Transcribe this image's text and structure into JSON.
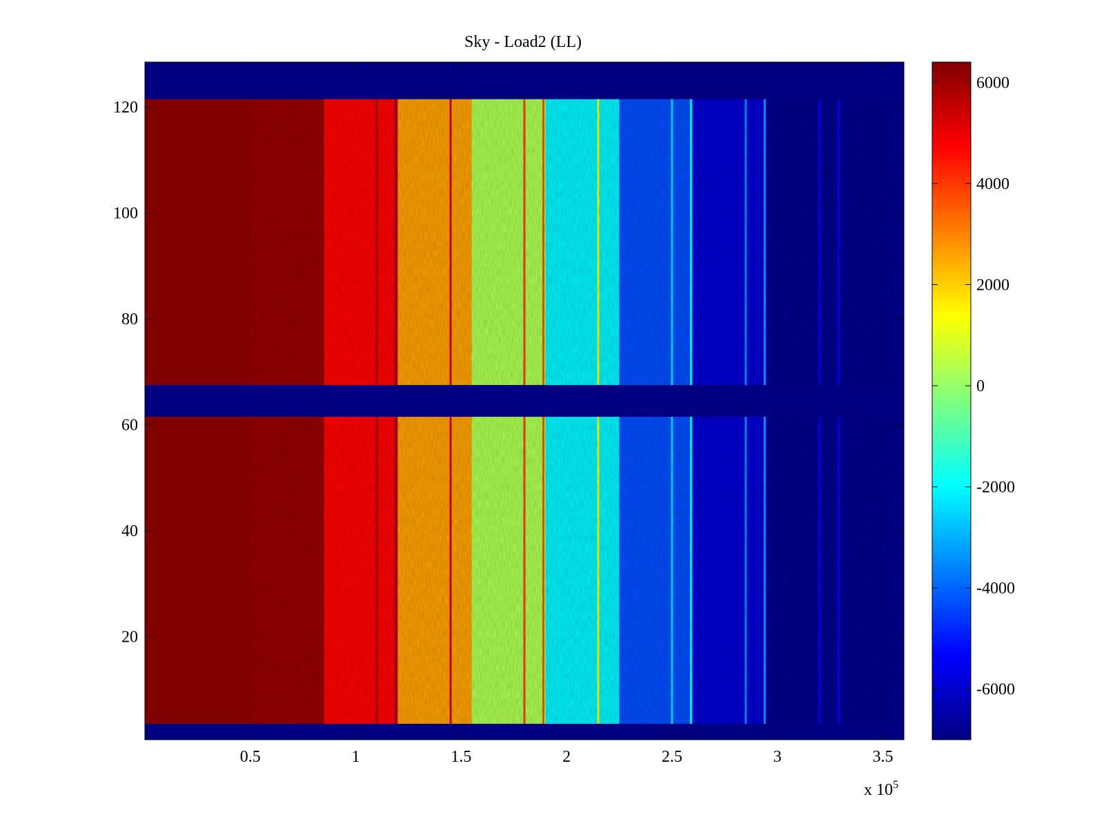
{
  "chart_data": {
    "type": "heatmap",
    "title": "Sky - Load2 (LL)",
    "xlabel": "",
    "ylabel": "",
    "x_exponent_label": "x 10",
    "x_exponent_power": "5",
    "xlim": [
      0,
      3.6
    ],
    "ylim": [
      0.5,
      128.5
    ],
    "xticks": [
      0.5,
      1,
      1.5,
      2,
      2.5,
      3,
      3.5
    ],
    "xtick_labels": [
      "0.5",
      "1",
      "1.5",
      "2",
      "2.5",
      "3",
      "3.5"
    ],
    "yticks": [
      20,
      40,
      60,
      80,
      100,
      120
    ],
    "ytick_labels": [
      "20",
      "40",
      "60",
      "80",
      "100",
      "120"
    ],
    "colormap": "jet",
    "clim": [
      -7000,
      6400
    ],
    "colorbar_ticks": [
      6000,
      4000,
      2000,
      0,
      -2000,
      -4000,
      -6000
    ],
    "colorbar_tick_labels": [
      "6000",
      "4000",
      "2000",
      "0",
      "-2000",
      "-4000",
      "-6000"
    ],
    "rows_with_data": [
      [
        4,
        61
      ],
      [
        68,
        121
      ]
    ],
    "background_value": -7000,
    "column_bands": [
      {
        "x_start": 0.0,
        "x_end": 0.5,
        "value": 6400
      },
      {
        "x_start": 0.5,
        "x_end": 0.85,
        "value": 6100
      },
      {
        "x_start": 0.85,
        "x_end": 1.2,
        "value": 4700
      },
      {
        "x_start": 1.2,
        "x_end": 1.55,
        "value": 2600
      },
      {
        "x_start": 1.55,
        "x_end": 1.9,
        "value": 300
      },
      {
        "x_start": 1.9,
        "x_end": 2.25,
        "value": -2100
      },
      {
        "x_start": 2.25,
        "x_end": 2.6,
        "value": -4300
      },
      {
        "x_start": 2.6,
        "x_end": 2.95,
        "value": -5900
      },
      {
        "x_start": 2.95,
        "x_end": 3.6,
        "value": -6800
      }
    ],
    "spectral_lines": [
      {
        "x": 1.1,
        "value": 5800
      },
      {
        "x": 1.19,
        "value": 6300
      },
      {
        "x": 1.45,
        "value": 5200
      },
      {
        "x": 1.8,
        "value": 3900
      },
      {
        "x": 1.89,
        "value": 3600
      },
      {
        "x": 2.15,
        "value": 1400
      },
      {
        "x": 2.5,
        "value": -2400
      },
      {
        "x": 2.59,
        "value": -1800
      },
      {
        "x": 2.85,
        "value": -3400
      },
      {
        "x": 2.94,
        "value": -3200
      },
      {
        "x": 3.2,
        "value": -5400
      },
      {
        "x": 3.29,
        "value": -5300
      }
    ]
  }
}
